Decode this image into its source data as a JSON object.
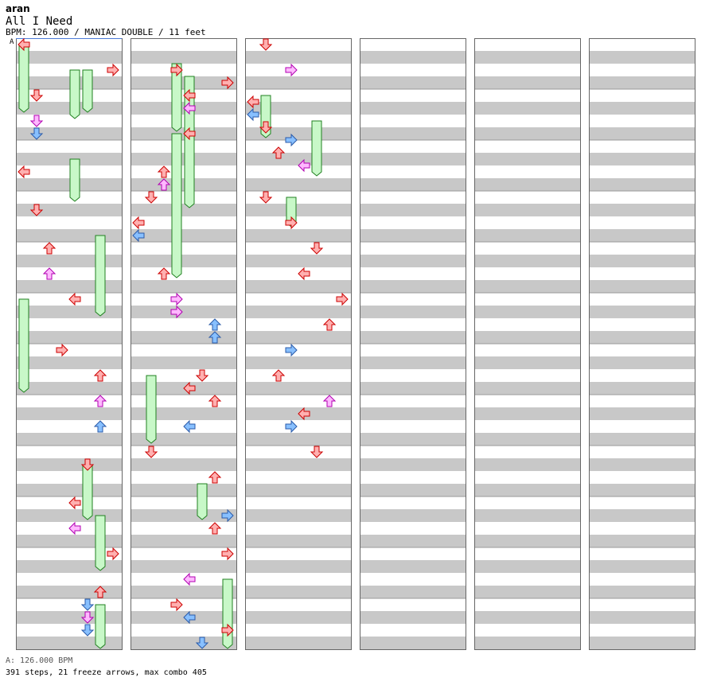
{
  "header": {
    "artist": "aran",
    "title": "All I Need",
    "info": "BPM: 126.000 / MANIAC DOUBLE / 11 feet"
  },
  "section_marker": "A",
  "footer": {
    "bpm_line": "A: 126.000 BPM",
    "stats_line": "391 steps, 21 freeze arrows, max combo 405"
  },
  "colors": {
    "background": "#ffffff",
    "stripe": "#c8c8c8",
    "column_border": "#666666",
    "arrow_red_fill": "#ffb0b0",
    "arrow_red_stroke": "#cc0000",
    "arrow_blue_fill": "#88c0ff",
    "arrow_blue_stroke": "#2a5aa8",
    "arrow_pink_fill": "#ffb8ff",
    "arrow_pink_stroke": "#b000b0",
    "freeze_fill": "#c8f8c8",
    "freeze_stroke": "#208020"
  },
  "chart_data": {
    "type": "step_chart",
    "bpm": 126.0,
    "difficulty": "MANIAC DOUBLE",
    "feet": 11,
    "lanes": [
      "1L",
      "1D",
      "1U",
      "1R",
      "2L",
      "2D",
      "2U",
      "2R"
    ],
    "sixteenths_per_column": 96,
    "steps": 391,
    "freeze_arrows": 21,
    "max_combo": 405,
    "notes": [
      [
        0,
        0,
        "r"
      ],
      [
        4,
        7,
        "r"
      ],
      [
        8,
        1,
        "r"
      ],
      [
        12,
        1,
        "p"
      ],
      [
        14,
        1,
        "b"
      ],
      [
        20,
        0,
        "r"
      ],
      [
        26,
        1,
        "r"
      ],
      [
        32,
        2,
        "r"
      ],
      [
        36,
        2,
        "p"
      ],
      [
        40,
        4,
        "r"
      ],
      [
        48,
        3,
        "r"
      ],
      [
        52,
        6,
        "r"
      ],
      [
        56,
        6,
        "p"
      ],
      [
        60,
        6,
        "b"
      ],
      [
        66,
        5,
        "r"
      ],
      [
        72,
        4,
        "r"
      ],
      [
        76,
        4,
        "p"
      ],
      [
        80,
        7,
        "r"
      ],
      [
        86,
        6,
        "r"
      ],
      [
        88,
        5,
        "b"
      ],
      [
        90,
        5,
        "p"
      ],
      [
        92,
        5,
        "b"
      ],
      [
        100,
        3,
        "r"
      ],
      [
        102,
        7,
        "r"
      ],
      [
        104,
        4,
        "r"
      ],
      [
        106,
        4,
        "p"
      ],
      [
        110,
        4,
        "r"
      ],
      [
        116,
        2,
        "r"
      ],
      [
        118,
        2,
        "p"
      ],
      [
        120,
        1,
        "r"
      ],
      [
        124,
        0,
        "r"
      ],
      [
        126,
        0,
        "b"
      ],
      [
        132,
        2,
        "r"
      ],
      [
        136,
        3,
        "p"
      ],
      [
        138,
        3,
        "p"
      ],
      [
        140,
        6,
        "b"
      ],
      [
        142,
        6,
        "b"
      ],
      [
        148,
        5,
        "r"
      ],
      [
        150,
        4,
        "r"
      ],
      [
        152,
        6,
        "r"
      ],
      [
        156,
        4,
        "b"
      ],
      [
        160,
        1,
        "r"
      ],
      [
        164,
        6,
        "r"
      ],
      [
        170,
        7,
        "b"
      ],
      [
        172,
        6,
        "r"
      ],
      [
        176,
        7,
        "r"
      ],
      [
        180,
        4,
        "p"
      ],
      [
        184,
        3,
        "r"
      ],
      [
        186,
        4,
        "b"
      ],
      [
        188,
        7,
        "r"
      ],
      [
        190,
        5,
        "b"
      ],
      [
        192,
        1,
        "r"
      ],
      [
        196,
        3,
        "p"
      ],
      [
        201,
        0,
        "r"
      ],
      [
        203,
        0,
        "b"
      ],
      [
        205,
        1,
        "r"
      ],
      [
        207,
        3,
        "b"
      ],
      [
        209,
        2,
        "r"
      ],
      [
        211,
        4,
        "p"
      ],
      [
        216,
        1,
        "r"
      ],
      [
        220,
        3,
        "r"
      ],
      [
        224,
        5,
        "r"
      ],
      [
        228,
        4,
        "r"
      ],
      [
        232,
        7,
        "r"
      ],
      [
        236,
        6,
        "r"
      ],
      [
        240,
        3,
        "b"
      ],
      [
        244,
        2,
        "r"
      ],
      [
        248,
        6,
        "p"
      ],
      [
        250,
        4,
        "r"
      ],
      [
        252,
        3,
        "b"
      ],
      [
        256,
        5,
        "r"
      ]
    ],
    "freezes": [
      [
        0,
        0,
        10
      ],
      [
        4,
        4,
        7
      ],
      [
        18,
        4,
        6
      ],
      [
        30,
        6,
        12
      ],
      [
        40,
        0,
        14
      ],
      [
        4,
        5,
        6
      ],
      [
        66,
        5,
        8
      ],
      [
        74,
        6,
        8
      ],
      [
        88,
        6,
        10
      ],
      [
        101,
        4,
        20
      ],
      [
        99,
        3,
        10
      ],
      [
        110,
        3,
        22
      ],
      [
        148,
        1,
        10
      ],
      [
        165,
        5,
        5
      ],
      [
        180,
        7,
        13
      ],
      [
        200,
        1,
        6
      ],
      [
        204,
        5,
        8
      ],
      [
        216,
        3,
        4
      ]
    ]
  }
}
